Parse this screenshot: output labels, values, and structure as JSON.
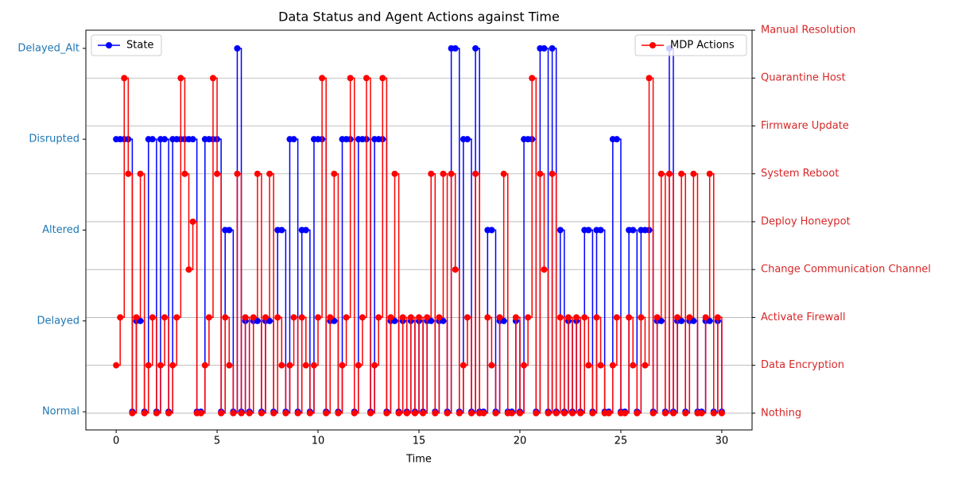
{
  "chart_data": {
    "type": "step",
    "title": "Data Status and Agent Actions against Time",
    "x_label": "Time",
    "x": [
      0,
      0.2,
      0.4,
      0.6,
      0.8,
      1,
      1.2,
      1.4,
      1.6,
      1.8,
      2,
      2.2,
      2.4,
      2.6,
      2.8,
      3,
      3.2,
      3.4,
      3.6,
      3.8,
      4,
      4.2,
      4.4,
      4.6,
      4.8,
      5,
      5.2,
      5.4,
      5.6,
      5.8,
      6,
      6.2,
      6.4,
      6.6,
      6.8,
      7,
      7.2,
      7.4,
      7.6,
      7.8,
      8,
      8.2,
      8.4,
      8.6,
      8.8,
      9,
      9.2,
      9.4,
      9.6,
      9.8,
      10,
      10.2,
      10.4,
      10.6,
      10.8,
      11,
      11.2,
      11.4,
      11.6,
      11.8,
      12,
      12.2,
      12.4,
      12.6,
      12.8,
      13,
      13.2,
      13.4,
      13.6,
      13.8,
      14,
      14.2,
      14.4,
      14.6,
      14.8,
      15,
      15.2,
      15.4,
      15.6,
      15.8,
      16,
      16.2,
      16.4,
      16.6,
      16.8,
      17,
      17.2,
      17.4,
      17.6,
      17.8,
      18,
      18.2,
      18.4,
      18.6,
      18.8,
      19,
      19.2,
      19.4,
      19.6,
      19.8,
      20,
      20.2,
      20.4,
      20.6,
      20.8,
      21,
      21.2,
      21.4,
      21.6,
      21.8,
      22,
      22.2,
      22.4,
      22.6,
      22.8,
      23,
      23.2,
      23.4,
      23.6,
      23.8,
      24,
      24.2,
      24.4,
      24.6,
      24.8,
      25,
      25.2,
      25.4,
      25.6,
      25.8,
      26,
      26.2,
      26.4,
      26.6,
      26.8,
      27,
      27.2,
      27.4,
      27.6,
      27.8,
      28,
      28.2,
      28.4,
      28.6,
      28.8,
      29,
      29.2,
      29.4,
      29.6,
      29.8,
      30
    ],
    "series": [
      {
        "name": "State",
        "color": "#0000ff",
        "values": [
          3,
          3,
          3,
          3,
          0,
          1,
          1,
          0,
          3,
          3,
          0,
          3,
          3,
          0,
          3,
          3,
          3,
          3,
          3,
          3,
          0,
          0,
          3,
          3,
          3,
          3,
          0,
          2,
          2,
          0,
          4,
          0,
          1,
          0,
          1,
          1,
          0,
          1,
          1,
          0,
          2,
          2,
          0,
          3,
          3,
          0,
          2,
          2,
          0,
          3,
          3,
          3,
          0,
          1,
          1,
          0,
          3,
          3,
          3,
          0,
          3,
          3,
          3,
          0,
          3,
          3,
          3,
          0,
          1,
          1,
          0,
          1,
          0,
          1,
          0,
          1,
          0,
          1,
          1,
          0,
          1,
          1,
          0,
          4,
          4,
          0,
          3,
          3,
          0,
          4,
          0,
          0,
          2,
          2,
          0,
          1,
          1,
          0,
          0,
          1,
          0,
          3,
          3,
          3,
          0,
          4,
          4,
          0,
          4,
          0,
          2,
          0,
          1,
          0,
          1,
          0,
          2,
          2,
          0,
          2,
          2,
          0,
          0,
          3,
          3,
          0,
          0,
          2,
          2,
          0,
          2,
          2,
          2,
          0,
          1,
          1,
          0,
          4,
          0,
          1,
          1,
          0,
          1,
          1,
          0,
          0,
          1,
          1,
          0,
          1,
          0
        ]
      },
      {
        "name": "MDP Actions",
        "color": "#ff0000",
        "axis": "y2",
        "values": [
          1,
          2,
          7,
          5,
          0,
          2,
          5,
          0,
          1,
          2,
          0,
          1,
          2,
          0,
          1,
          2,
          7,
          5,
          3,
          4,
          0,
          0,
          1,
          2,
          7,
          5,
          0,
          2,
          1,
          0,
          5,
          0,
          2,
          0,
          2,
          5,
          0,
          2,
          5,
          0,
          2,
          1,
          0,
          1,
          2,
          0,
          2,
          1,
          0,
          1,
          2,
          7,
          0,
          2,
          5,
          0,
          1,
          2,
          7,
          0,
          1,
          2,
          7,
          0,
          1,
          2,
          7,
          0,
          2,
          5,
          0,
          2,
          0,
          2,
          0,
          2,
          0,
          2,
          5,
          0,
          2,
          5,
          0,
          5,
          3,
          0,
          1,
          2,
          0,
          5,
          0,
          0,
          2,
          1,
          0,
          2,
          5,
          0,
          0,
          2,
          0,
          1,
          2,
          7,
          0,
          5,
          3,
          0,
          5,
          0,
          2,
          0,
          2,
          0,
          2,
          0,
          2,
          1,
          0,
          2,
          1,
          0,
          0,
          1,
          2,
          0,
          0,
          2,
          1,
          0,
          2,
          1,
          7,
          0,
          2,
          5,
          0,
          5,
          0,
          2,
          5,
          0,
          2,
          5,
          0,
          0,
          2,
          5,
          0,
          2,
          0
        ]
      }
    ],
    "xlim": [
      -1.5,
      31.5
    ],
    "xticks": [
      0,
      5,
      10,
      15,
      20,
      25,
      30
    ],
    "ylim": [
      -0.2,
      4.2
    ],
    "yticks": [
      {
        "value": 0,
        "label": "Normal"
      },
      {
        "value": 1,
        "label": "Delayed"
      },
      {
        "value": 2,
        "label": "Altered"
      },
      {
        "value": 3,
        "label": "Disrupted"
      },
      {
        "value": 4,
        "label": "Delayed_Alt"
      }
    ],
    "y2lim": [
      -0.35,
      8
    ],
    "y2ticks": [
      {
        "value": 0,
        "label": "Nothing"
      },
      {
        "value": 1,
        "label": "Data Encryption"
      },
      {
        "value": 2,
        "label": "Activate Firewall"
      },
      {
        "value": 3,
        "label": "Change Communication Channel"
      },
      {
        "value": 4,
        "label": "Deploy Honeypot"
      },
      {
        "value": 5,
        "label": "System Reboot"
      },
      {
        "value": 6,
        "label": "Firmware Update"
      },
      {
        "value": 7,
        "label": "Quarantine Host"
      },
      {
        "value": 8,
        "label": "Manual Resolution"
      }
    ],
    "y_tick_color": "#1f77b4",
    "y2_tick_color": "#d62728",
    "grid": "y2",
    "legend": [
      "upper left",
      "upper right"
    ]
  }
}
